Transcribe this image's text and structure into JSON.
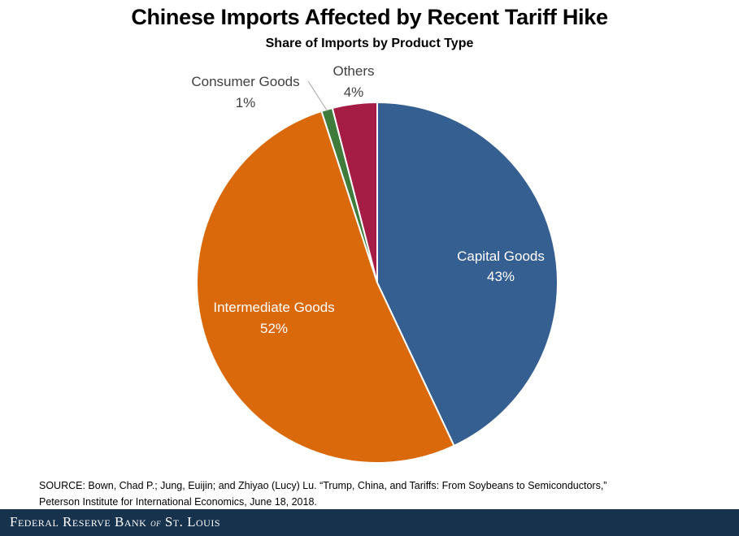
{
  "chart_data": {
    "type": "pie",
    "title": "Chinese Imports Affected by Recent Tariff Hike",
    "subtitle": "Share of Imports by Product Type",
    "start": "top",
    "direction": "clockwise",
    "slices": [
      {
        "label": "Capital Goods",
        "value": 43,
        "value_label": "43%",
        "color": "#365f91",
        "label_color": "#ffffff",
        "label_position": "inside"
      },
      {
        "label": "Intermediate Goods",
        "value": 52,
        "value_label": "52%",
        "color": "#d9690a",
        "label_color": "#ffffff",
        "label_position": "inside"
      },
      {
        "label": "Consumer Goods",
        "value": 1,
        "value_label": "1%",
        "color": "#3f7b3b",
        "label_color": "#404040",
        "label_position": "outside-leader"
      },
      {
        "label": "Others",
        "value": 4,
        "value_label": "4%",
        "color": "#a51c44",
        "label_color": "#404040",
        "label_position": "outside"
      }
    ]
  },
  "source": {
    "line1": "SOURCE: Bown, Chad P.; Jung, Euijin; and Zhiyao (Lucy) Lu. “Trump, China, and Tariffs: From Soybeans to Semiconductors,”",
    "line2": "Peterson Institute for International Economics, June 18, 2018."
  },
  "footer": {
    "brand_part1": "Federal Reserve Bank ",
    "brand_of": "of",
    "brand_part2": " St. Louis"
  }
}
